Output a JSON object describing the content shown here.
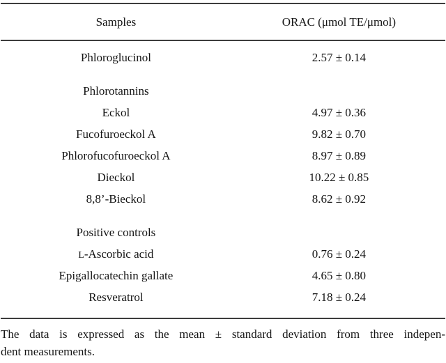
{
  "table": {
    "header": {
      "samples": "Samples",
      "orac": "ORAC (μmol TE/μmol)"
    },
    "rows": [
      {
        "label": "Phloroglucinol",
        "value": "2.57 ± 0.14",
        "type": "data"
      },
      {
        "label": "Phlorotannins",
        "value": "",
        "type": "group"
      },
      {
        "label": "Eckol",
        "value": "4.97 ± 0.36",
        "type": "data"
      },
      {
        "label": "Fucofuroeckol A",
        "value": "9.82 ± 0.70",
        "type": "data"
      },
      {
        "label": "Phlorofucofuroeckol A",
        "value": "8.97 ± 0.89",
        "type": "data"
      },
      {
        "label": "Dieckol",
        "value": "10.22 ± 0.85",
        "type": "data"
      },
      {
        "label": "8,8’-Bieckol",
        "value": "8.62 ± 0.92",
        "type": "data"
      },
      {
        "label": "Positive controls",
        "value": "",
        "type": "group"
      },
      {
        "label": "L-Ascorbic acid",
        "value": "0.76 ± 0.24",
        "type": "data"
      },
      {
        "label": "Epigallocatechin gallate",
        "value": "4.65 ± 0.80",
        "type": "data"
      },
      {
        "label": "Resveratrol",
        "value": "7.18 ± 0.24",
        "type": "data"
      }
    ]
  },
  "footnote": {
    "line1": "The data is expressed as the mean ± standard deviation from three indepen-",
    "line2": "dent measurements."
  },
  "colors": {
    "text": "#141414",
    "rule": "#3d3d3d",
    "background": "#ffffff"
  }
}
